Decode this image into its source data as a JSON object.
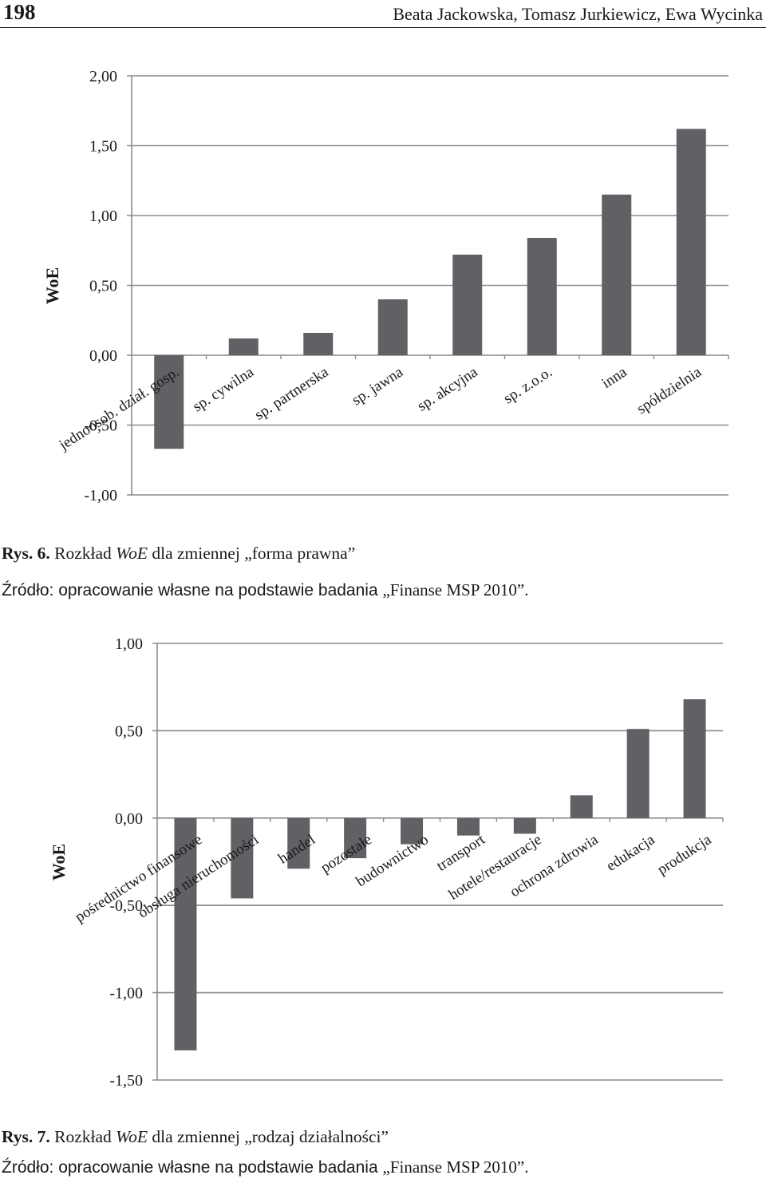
{
  "header": {
    "page_number": "198",
    "authors": "Beata Jackowska, Tomasz Jurkiewicz, Ewa Wycinka"
  },
  "figure1": {
    "label": "Rys. 6.",
    "caption_before": "Rozkład",
    "caption_term": "WoE",
    "caption_after": "dla zmiennej „forma prawna”",
    "source_prefix": "Źródło: opracowanie własne na podstawie badania",
    "source_title": "„Finanse MSP 2010”."
  },
  "figure2": {
    "label": "Rys. 7.",
    "caption_before": "Rozkład",
    "caption_term": "WoE",
    "caption_after": "dla zmiennej „rodzaj działalności”",
    "source_prefix": "Źródło: opracowanie własne na podstawie badania",
    "source_title": "„Finanse MSP 2010”."
  },
  "colors": {
    "bar": "#606065",
    "grid": "#8c8c8c",
    "axis": "#8c8c8c",
    "text": "#1a1a1a"
  },
  "chart_data": [
    {
      "type": "bar",
      "title": "",
      "xlabel": "",
      "ylabel": "WoE",
      "ylim": [
        -1.0,
        2.0
      ],
      "yticks": [
        2.0,
        1.5,
        1.0,
        0.5,
        0.0,
        -0.5,
        -1.0
      ],
      "ytick_labels": [
        "2,00",
        "1,50",
        "1,00",
        "0,50",
        "0,00",
        "-0,50",
        "-1,00"
      ],
      "grid": true,
      "categories": [
        "jednoosob. dział. gosp.",
        "sp. cywilna",
        "sp. partnerska",
        "sp. jawna",
        "sp. akcyjna",
        "sp. z.o.o.",
        "inna",
        "spółdzielnia"
      ],
      "values": [
        -0.67,
        0.12,
        0.16,
        0.4,
        0.72,
        0.84,
        1.15,
        1.62
      ]
    },
    {
      "type": "bar",
      "title": "",
      "xlabel": "",
      "ylabel": "WoE",
      "ylim": [
        -1.5,
        1.0
      ],
      "yticks": [
        1.0,
        0.5,
        0.0,
        -0.5,
        -1.0,
        -1.5
      ],
      "ytick_labels": [
        "1,00",
        "0,50",
        "0,00",
        "-0,50",
        "-1,00",
        "-1,50"
      ],
      "grid": true,
      "categories": [
        "pośrednictwo finansowe",
        "obsługa nieruchomości",
        "handel",
        "pozostałe",
        "budownictwo",
        "transport",
        "hotele/restauracje",
        "ochrona zdrowia",
        "edukacja",
        "produkcja"
      ],
      "values": [
        -1.33,
        -0.46,
        -0.29,
        -0.23,
        -0.15,
        -0.1,
        -0.09,
        0.13,
        0.51,
        0.68
      ]
    }
  ]
}
